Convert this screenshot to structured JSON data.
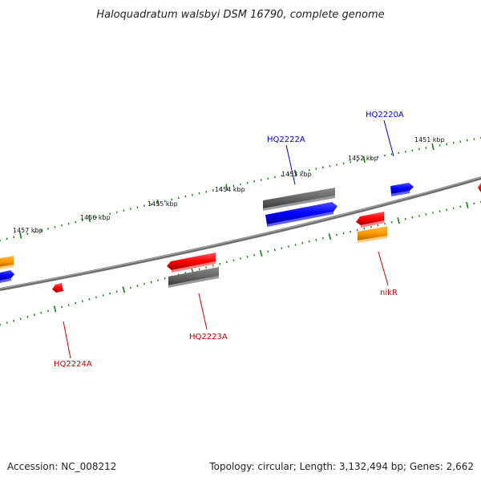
{
  "title": "Haloquadratum walsbyi DSM 16790, complete genome",
  "accession": "Accession: NC_008212",
  "topology": "Topology: circular; Length: 3,132,494 bp; Genes: 2,662",
  "ticks": [
    "1451 kbp",
    "1452 kbp",
    "1453 kbp",
    "1454 kbp",
    "1455 kbp",
    "1456 kbp",
    "1457 kbp"
  ],
  "genes": [
    {
      "label": "HQ2220A",
      "color": "#0000cc"
    },
    {
      "label": "HQ2222A",
      "color": "#0000cc"
    },
    {
      "label": "nikR",
      "color": "#cc0000"
    },
    {
      "label": "HQ2223A",
      "color": "#cc0000"
    },
    {
      "label": "HQ2224A",
      "color": "#cc0000"
    }
  ],
  "colors": {
    "forward_cds": "#0000ff",
    "reverse_cds": "#ff0000",
    "gene": "#666666",
    "other": "#ff9900",
    "ticks": "#1a7a1a",
    "backbone": "#888888"
  }
}
